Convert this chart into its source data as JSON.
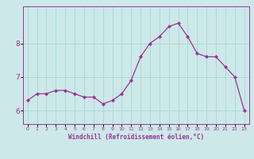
{
  "x": [
    0,
    1,
    2,
    3,
    4,
    5,
    6,
    7,
    8,
    9,
    10,
    11,
    12,
    13,
    14,
    15,
    16,
    17,
    18,
    19,
    20,
    21,
    22,
    23
  ],
  "y": [
    6.3,
    6.5,
    6.5,
    6.6,
    6.6,
    6.5,
    6.4,
    6.4,
    6.2,
    6.3,
    6.5,
    6.9,
    7.6,
    8.0,
    8.2,
    8.5,
    8.6,
    8.2,
    7.7,
    7.6,
    7.6,
    7.3,
    7.0,
    6.0
  ],
  "line_color": "#993399",
  "marker": "D",
  "marker_size": 2.0,
  "bg_color": "#cce8e8",
  "grid_color": "#b0d8d8",
  "xlabel": "Windchill (Refroidissement éolien,°C)",
  "xlabel_color": "#993399",
  "tick_color": "#993399",
  "yticks": [
    6,
    7,
    8
  ],
  "xticks": [
    0,
    1,
    2,
    3,
    4,
    5,
    6,
    7,
    8,
    9,
    10,
    11,
    12,
    13,
    14,
    15,
    16,
    17,
    18,
    19,
    20,
    21,
    22,
    23
  ],
  "ylim": [
    5.6,
    9.1
  ],
  "xlim": [
    -0.5,
    23.5
  ]
}
